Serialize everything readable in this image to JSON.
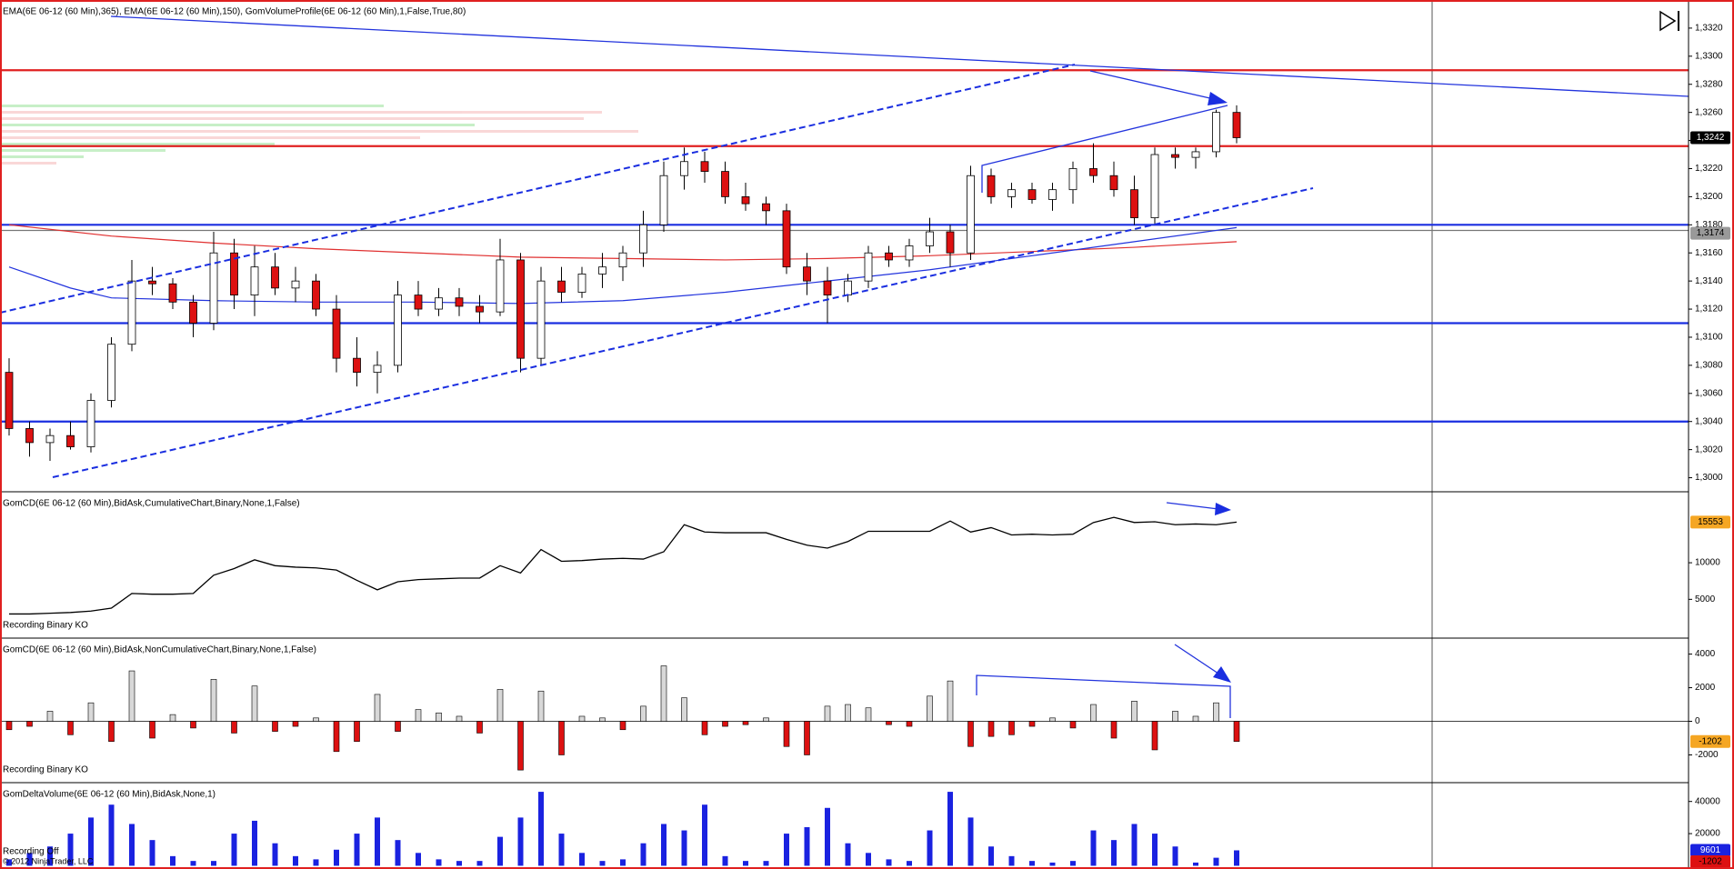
{
  "chart_data": [
    {
      "type": "candlestick",
      "title": "EMA(6E 06-12 (60 Min),365), EMA(6E 06-12 (60 Min),150), GomVolumeProfile(6E 06-12 (60 Min),1,False,True,80)",
      "open": [
        1.3075,
        1.3035,
        1.3025,
        1.303,
        1.3022,
        1.3055,
        1.3095,
        1.314,
        1.3138,
        1.3125,
        1.311,
        1.316,
        1.313,
        1.315,
        1.3135,
        1.314,
        1.312,
        1.3085,
        1.3075,
        1.308,
        1.313,
        1.312,
        1.3128,
        1.3122,
        1.3118,
        1.3155,
        1.3085,
        1.314,
        1.3132,
        1.3145,
        1.315,
        1.316,
        1.318,
        1.3215,
        1.3225,
        1.3218,
        1.32,
        1.3195,
        1.319,
        1.315,
        1.314,
        1.313,
        1.314,
        1.316,
        1.3155,
        1.3165,
        1.3175,
        1.316,
        1.3215,
        1.32,
        1.3205,
        1.3198,
        1.3205,
        1.322,
        1.3215,
        1.3205,
        1.3185,
        1.323,
        1.3228,
        1.3232,
        1.326
      ],
      "high": [
        1.3085,
        1.304,
        1.3035,
        1.304,
        1.306,
        1.31,
        1.3155,
        1.315,
        1.3142,
        1.313,
        1.3175,
        1.317,
        1.3165,
        1.316,
        1.315,
        1.3145,
        1.313,
        1.31,
        1.309,
        1.314,
        1.314,
        1.3135,
        1.3135,
        1.313,
        1.317,
        1.316,
        1.315,
        1.315,
        1.315,
        1.316,
        1.3165,
        1.319,
        1.3225,
        1.3235,
        1.3232,
        1.3225,
        1.321,
        1.32,
        1.3195,
        1.316,
        1.315,
        1.3145,
        1.3165,
        1.3165,
        1.317,
        1.3185,
        1.318,
        1.3222,
        1.322,
        1.321,
        1.321,
        1.321,
        1.3225,
        1.3238,
        1.3225,
        1.3215,
        1.3235,
        1.3235,
        1.3235,
        1.3262,
        1.3265
      ],
      "low": [
        1.303,
        1.3015,
        1.3012,
        1.302,
        1.3018,
        1.305,
        1.309,
        1.313,
        1.312,
        1.31,
        1.3105,
        1.312,
        1.3115,
        1.313,
        1.3125,
        1.3115,
        1.3075,
        1.3065,
        1.306,
        1.3075,
        1.3115,
        1.3115,
        1.3115,
        1.311,
        1.3115,
        1.3075,
        1.308,
        1.3125,
        1.3128,
        1.3135,
        1.314,
        1.315,
        1.3175,
        1.3205,
        1.321,
        1.3195,
        1.319,
        1.318,
        1.3145,
        1.313,
        1.311,
        1.3125,
        1.3135,
        1.315,
        1.315,
        1.316,
        1.315,
        1.3155,
        1.3195,
        1.3192,
        1.3195,
        1.319,
        1.3195,
        1.321,
        1.32,
        1.318,
        1.318,
        1.322,
        1.322,
        1.3228,
        1.3238
      ],
      "close": [
        1.3035,
        1.3025,
        1.303,
        1.3022,
        1.3055,
        1.3095,
        1.314,
        1.3138,
        1.3125,
        1.311,
        1.316,
        1.313,
        1.315,
        1.3135,
        1.314,
        1.312,
        1.3085,
        1.3075,
        1.308,
        1.313,
        1.312,
        1.3128,
        1.3122,
        1.3118,
        1.3155,
        1.3085,
        1.314,
        1.3132,
        1.3145,
        1.315,
        1.316,
        1.318,
        1.3215,
        1.3225,
        1.3218,
        1.32,
        1.3195,
        1.319,
        1.315,
        1.314,
        1.313,
        1.314,
        1.316,
        1.3155,
        1.3165,
        1.3175,
        1.316,
        1.3215,
        1.32,
        1.3205,
        1.3198,
        1.3205,
        1.322,
        1.3215,
        1.3205,
        1.3185,
        1.323,
        1.3228,
        1.3232,
        1.326,
        1.3242
      ],
      "color_up": "#ffffff",
      "color_down": "#dd1111",
      "series": [
        {
          "color": "#e03030",
          "x": [
            0,
            5,
            10,
            15,
            20,
            25,
            30,
            35,
            40,
            45,
            50,
            55,
            60
          ],
          "values": [
            1.318,
            1.3172,
            1.3167,
            1.3163,
            1.316,
            1.3157,
            1.3156,
            1.3155,
            1.3156,
            1.3158,
            1.3161,
            1.3164,
            1.3168
          ]
        },
        {
          "color": "#2233dd",
          "x": [
            0,
            3,
            5,
            10,
            15,
            20,
            25,
            30,
            35,
            40,
            45,
            50,
            55,
            60
          ],
          "values": [
            1.315,
            1.3135,
            1.3128,
            1.3126,
            1.3125,
            1.3125,
            1.3124,
            1.3126,
            1.3132,
            1.314,
            1.3148,
            1.3158,
            1.3168,
            1.3178
          ]
        }
      ],
      "levels": [
        {
          "value": 1.329,
          "color": "#e02020"
        },
        {
          "value": 1.3236,
          "color": "#e02020"
        },
        {
          "value": 1.318,
          "color": "#1a2ee0"
        },
        {
          "value": 1.3176,
          "color": "#777777"
        },
        {
          "value": 1.311,
          "color": "#1a2ee0"
        },
        {
          "value": 1.304,
          "color": "#1a2ee0"
        }
      ],
      "markers": [
        {
          "value": 1.3242,
          "label": "1,3242",
          "color": "#000000",
          "text_color": "#ffffff"
        },
        {
          "value": 1.3174,
          "label": "1,3174",
          "color": "#999999",
          "text_color": "#000000"
        }
      ],
      "ylim": [
        1.299,
        1.334
      ],
      "yticks": [
        {
          "value": 1.3,
          "label": "1,3000"
        },
        {
          "value": 1.302,
          "label": "1,3020"
        },
        {
          "value": 1.304,
          "label": "1,3040"
        },
        {
          "value": 1.306,
          "label": "1,3060"
        },
        {
          "value": 1.308,
          "label": "1,3080"
        },
        {
          "value": 1.31,
          "label": "1,3100"
        },
        {
          "value": 1.312,
          "label": "1,3120"
        },
        {
          "value": 1.314,
          "label": "1,3140"
        },
        {
          "value": 1.316,
          "label": "1,3160"
        },
        {
          "value": 1.318,
          "label": "1,3180"
        },
        {
          "value": 1.32,
          "label": "1,3200"
        },
        {
          "value": 1.322,
          "label": "1,3220"
        },
        {
          "value": 1.324,
          "label": "1,3240"
        },
        {
          "value": 1.326,
          "label": "1,3260"
        },
        {
          "value": 1.328,
          "label": "1,3280"
        },
        {
          "value": 1.33,
          "label": "1,3300"
        },
        {
          "value": 1.332,
          "label": "1,3320"
        }
      ],
      "annotations": []
    },
    {
      "type": "line",
      "title": "GomCD(6E 06-12 (60 Min),BidAsk,CumulativeChart,Binary,None,1,False)",
      "values": [
        3000,
        3000,
        3100,
        3200,
        3400,
        3800,
        5800,
        5700,
        5700,
        5800,
        8300,
        9200,
        10400,
        9600,
        9400,
        9300,
        9000,
        7600,
        6300,
        7400,
        7700,
        7800,
        7900,
        7900,
        9600,
        8600,
        11800,
        10200,
        10300,
        10500,
        10600,
        10500,
        11500,
        15200,
        14200,
        14100,
        14100,
        14100,
        13200,
        12400,
        12000,
        12900,
        14300,
        14300,
        14300,
        14300,
        15700,
        14200,
        14800,
        13800,
        13900,
        13800,
        13900,
        15500,
        16200,
        15500,
        15600,
        15200,
        15300,
        15200,
        15553
      ],
      "color": "#000000",
      "markers": [
        {
          "value": 15553,
          "label": "15553",
          "color": "#f5a623",
          "text_color": "#000000"
        }
      ],
      "ylim": [
        -300,
        19700
      ],
      "yticks": [
        5000,
        10000
      ],
      "annotations": [
        "Recording Binary KO"
      ]
    },
    {
      "type": "bar",
      "title": "GomCD(6E 06-12 (60 Min),BidAsk,NonCumulativeChart,Binary,None,1,False)",
      "values": [
        -500,
        -300,
        600,
        -800,
        1100,
        -1200,
        3000,
        -1000,
        400,
        -400,
        2500,
        -700,
        2100,
        -600,
        -300,
        200,
        -1800,
        -1200,
        1600,
        -600,
        700,
        500,
        300,
        -700,
        1900,
        -2900,
        1800,
        -2000,
        300,
        200,
        -500,
        900,
        3300,
        1400,
        -800,
        -300,
        -200,
        200,
        -1500,
        -2000,
        900,
        1000,
        800,
        -200,
        -300,
        1500,
        2400,
        -1500,
        -900,
        -800,
        -300,
        200,
        -400,
        1000,
        -1000,
        1200,
        -1700,
        600,
        300,
        1100,
        -1202
      ],
      "color_up": "#d8d8d8",
      "color_down": "#dd1111",
      "markers": [
        {
          "value": -1202,
          "label": "-1202",
          "color": "#f5a623",
          "text_color": "#000000"
        }
      ],
      "ylim": [
        -3650,
        4950
      ],
      "yticks": [
        -2000,
        0,
        2000,
        4000
      ],
      "annotations": [
        "Recording Binary KO"
      ]
    },
    {
      "type": "bar",
      "title": "GomDeltaVolume(6E 06-12 (60 Min),BidAsk,None,1)",
      "values": [
        4000,
        8000,
        12000,
        20000,
        30000,
        38000,
        26000,
        16000,
        6000,
        3000,
        3000,
        20000,
        28000,
        14000,
        6000,
        4000,
        10000,
        20000,
        30000,
        16000,
        8000,
        4000,
        3000,
        3000,
        18000,
        30000,
        46000,
        20000,
        8000,
        3000,
        4000,
        14000,
        26000,
        22000,
        38000,
        6000,
        3000,
        3000,
        20000,
        24000,
        36000,
        14000,
        8000,
        4000,
        3000,
        22000,
        46000,
        30000,
        12000,
        6000,
        3000,
        2000,
        3000,
        22000,
        16000,
        26000,
        20000,
        12000,
        2000,
        5000,
        9601
      ],
      "color_up": "#1a22e0",
      "color_down": "#1a22e0",
      "markers": [
        {
          "value": 9601,
          "label": "9601",
          "color": "#1a22e0",
          "text_color": "#ffffff"
        },
        {
          "value": -1202,
          "label": "-1202",
          "color": "#dd1111",
          "text_color": "#000000"
        }
      ],
      "ylim": [
        -2000,
        51700
      ],
      "yticks": [
        20000,
        40000
      ],
      "annotations": [
        "Recording Off",
        "© 2012 NinjaTrader, LLC"
      ]
    }
  ]
}
